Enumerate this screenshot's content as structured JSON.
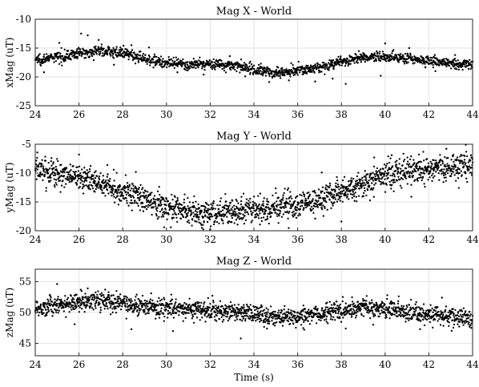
{
  "chart_data": [
    {
      "type": "scatter",
      "title": "Mag X - World",
      "ylabel": "xMag (uT)",
      "xlabel": "",
      "xlim": [
        24,
        44
      ],
      "ylim": [
        -25,
        -10
      ],
      "xticks": [
        "24",
        "26",
        "28",
        "30",
        "32",
        "34",
        "36",
        "38",
        "40",
        "42",
        "44"
      ],
      "yticks": [
        "-10",
        "-15",
        "-20",
        "-25"
      ],
      "ytick_values": [
        -10,
        -15,
        -20,
        -25
      ],
      "grid": true,
      "color": "#000000",
      "trend": {
        "x": [
          24,
          25,
          26,
          27,
          28,
          29,
          30,
          31,
          32,
          33,
          34,
          35,
          36,
          37,
          38,
          39,
          40,
          41,
          42,
          43,
          44
        ],
        "y": [
          -17,
          -16.6,
          -15.9,
          -15.4,
          -15.9,
          -16.8,
          -17.6,
          -18.0,
          -17.7,
          -18.0,
          -18.7,
          -19.3,
          -18.8,
          -18.4,
          -17.4,
          -16.7,
          -16.4,
          -16.8,
          -17.2,
          -17.6,
          -17.9
        ]
      },
      "spread": 0.45,
      "points": 1600,
      "outliers": [
        [
          24.4,
          -19.2
        ],
        [
          25.1,
          -14.1
        ],
        [
          26.1,
          -12.5
        ],
        [
          26.4,
          -12.8
        ],
        [
          26.9,
          -13.6
        ],
        [
          28.4,
          -14.5
        ],
        [
          29.2,
          -14.9
        ],
        [
          30.5,
          -19.2
        ],
        [
          31.7,
          -19.6
        ],
        [
          32.9,
          -16.4
        ],
        [
          34.7,
          -20.9
        ],
        [
          35.6,
          -20.6
        ],
        [
          37.6,
          -20.3
        ],
        [
          38.2,
          -21.2
        ],
        [
          39.8,
          -19.8
        ],
        [
          40.0,
          -14.2
        ],
        [
          41.1,
          -15.0
        ],
        [
          42.3,
          -19.0
        ],
        [
          33.6,
          -19.9
        ],
        [
          27.6,
          -17.9
        ],
        [
          36.8,
          -20.8
        ],
        [
          43.2,
          -16.2
        ]
      ]
    },
    {
      "type": "scatter",
      "title": "Mag Y - World",
      "ylabel": "yMag (uT)",
      "xlabel": "",
      "xlim": [
        24,
        44
      ],
      "ylim": [
        -20,
        -5
      ],
      "xticks": [
        "24",
        "26",
        "28",
        "30",
        "32",
        "34",
        "36",
        "38",
        "40",
        "42",
        "44"
      ],
      "yticks": [
        "-5",
        "-10",
        "-15",
        "-20"
      ],
      "ytick_values": [
        -5,
        -10,
        -15,
        -20
      ],
      "grid": true,
      "color": "#000000",
      "trend": {
        "x": [
          24,
          25,
          26,
          27,
          28,
          29,
          30,
          31,
          32,
          33,
          34,
          35,
          36,
          37,
          38,
          39,
          40,
          41,
          42,
          43,
          44
        ],
        "y": [
          -9.3,
          -10.0,
          -10.8,
          -11.8,
          -13.0,
          -14.6,
          -15.9,
          -16.8,
          -17.1,
          -16.6,
          -16.3,
          -16.0,
          -15.6,
          -14.6,
          -13.2,
          -11.8,
          -10.4,
          -9.6,
          -9.2,
          -9.0,
          -9.0
        ]
      },
      "spread": 1.15,
      "points": 1900,
      "outliers": [
        [
          26.0,
          -6.8
        ],
        [
          27.3,
          -8.6
        ],
        [
          28.6,
          -9.8
        ],
        [
          29.6,
          -17.9
        ],
        [
          30.2,
          -19.4
        ],
        [
          31.6,
          -19.0
        ],
        [
          32.0,
          -19.8
        ],
        [
          33.0,
          -14.7
        ],
        [
          34.6,
          -14.5
        ],
        [
          35.6,
          -14.4
        ],
        [
          36.8,
          -17.9
        ],
        [
          38.0,
          -18.4
        ],
        [
          39.5,
          -7.3
        ],
        [
          40.3,
          -6.9
        ],
        [
          41.2,
          -14.1
        ],
        [
          42.8,
          -5.8
        ],
        [
          43.5,
          -7.9
        ],
        [
          25.4,
          -11.9
        ],
        [
          37.1,
          -9.9
        ]
      ]
    },
    {
      "type": "scatter",
      "title": "Mag Z - World",
      "ylabel": "zMag (uT)",
      "xlabel": "Time (s)",
      "xlim": [
        24,
        44
      ],
      "ylim": [
        43,
        57
      ],
      "xticks": [
        "24",
        "26",
        "28",
        "30",
        "32",
        "34",
        "36",
        "38",
        "40",
        "42",
        "44"
      ],
      "yticks": [
        "55",
        "50",
        "45"
      ],
      "ytick_values": [
        55,
        50,
        45
      ],
      "grid": true,
      "color": "#000000",
      "trend": {
        "x": [
          24,
          25,
          26,
          27,
          28,
          29,
          30,
          31,
          32,
          33,
          34,
          35,
          36,
          37,
          38,
          39,
          40,
          41,
          42,
          43,
          44
        ],
        "y": [
          50.7,
          51.2,
          51.7,
          51.9,
          51.6,
          51.0,
          50.7,
          50.5,
          50.4,
          50.1,
          49.6,
          49.2,
          49.5,
          49.9,
          50.4,
          50.8,
          50.6,
          50.0,
          49.6,
          49.3,
          49.0
        ]
      },
      "spread": 0.75,
      "points": 1800,
      "outliers": [
        [
          25.0,
          54.6
        ],
        [
          26.4,
          53.9
        ],
        [
          27.2,
          53.7
        ],
        [
          29.3,
          53.1
        ],
        [
          28.4,
          47.3
        ],
        [
          30.3,
          47.0
        ],
        [
          33.4,
          45.8
        ],
        [
          34.6,
          47.4
        ],
        [
          36.3,
          47.2
        ],
        [
          40.1,
          52.8
        ],
        [
          41.6,
          47.3
        ],
        [
          42.6,
          52.4
        ],
        [
          32.1,
          52.7
        ],
        [
          38.2,
          47.4
        ],
        [
          25.8,
          48.1
        ]
      ]
    }
  ]
}
